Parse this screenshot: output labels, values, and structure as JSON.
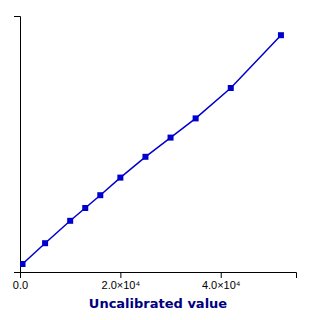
{
  "chart_data": {
    "type": "line",
    "xlabel": "Uncalibrated value",
    "x": [
      500,
      5000,
      10000,
      13000,
      16000,
      20000,
      25000,
      30000,
      35000,
      42000,
      52000
    ],
    "values": [
      0.5,
      1.8,
      3.2,
      4.0,
      4.8,
      5.9,
      7.2,
      8.4,
      9.6,
      11.5,
      14.8
    ],
    "color": "#0000cc",
    "marker": "square",
    "xlim": [
      0,
      55000
    ],
    "ylim": [
      0,
      16.0
    ],
    "xticks": [
      {
        "value": 0,
        "label": "0.0"
      },
      {
        "value": 20000,
        "label": "2.0×10⁴"
      },
      {
        "value": 40000,
        "label": "4.0×10⁴"
      }
    ],
    "yticks": [],
    "tick_labels": "x"
  }
}
